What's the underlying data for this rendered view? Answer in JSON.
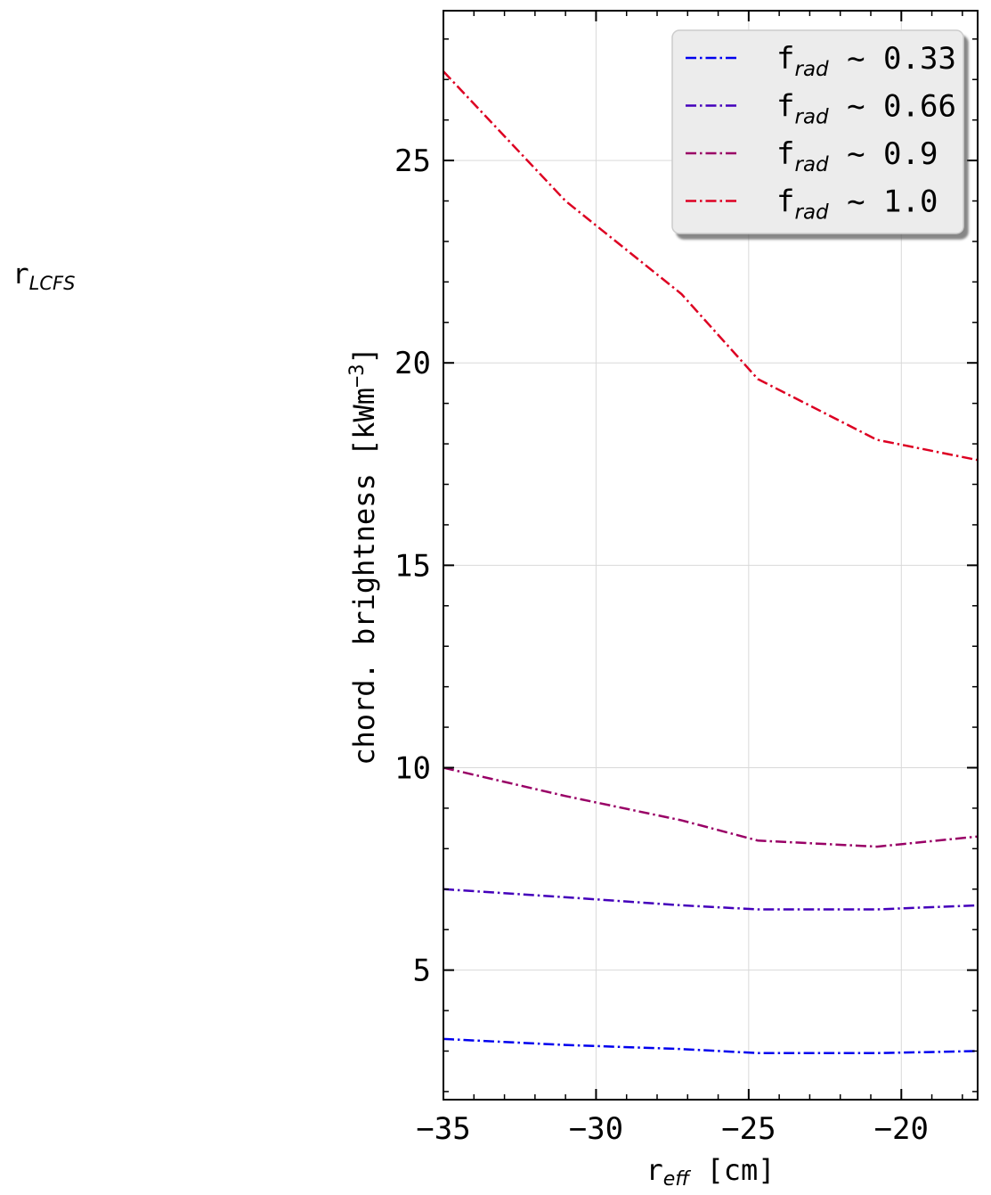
{
  "side_label": {
    "main": "r",
    "sub": "LCFS"
  },
  "chart_data": {
    "type": "line",
    "title": "",
    "xlabel": {
      "main": "r",
      "sub": "eff",
      "unit": " [cm]"
    },
    "ylabel": {
      "text": "chord. brightness [kWm",
      "sup": "−3",
      "end": "]"
    },
    "xlim": [
      -35,
      -17.5
    ],
    "ylim": [
      1.8,
      28.7
    ],
    "xticks": [
      -35,
      -30,
      -25,
      -20
    ],
    "xtick_labels": [
      "−35",
      "−30",
      "−25",
      "−20"
    ],
    "yticks": [
      5,
      10,
      15,
      20,
      25
    ],
    "ytick_labels": [
      "5",
      "10",
      "15",
      "20",
      "25"
    ],
    "grid": true,
    "legend_position": "top-right",
    "line_style": "dash-dot",
    "x": [
      -35,
      -31,
      -27.2,
      -24.7,
      -20.8,
      -17.5
    ],
    "series": [
      {
        "name": {
          "main": "f",
          "sub": "rad",
          "value": " ~ 0.33"
        },
        "color": "#0000ee",
        "values": [
          3.3,
          3.15,
          3.05,
          2.95,
          2.95,
          3.0
        ]
      },
      {
        "name": {
          "main": "f",
          "sub": "rad",
          "value": " ~ 0.66"
        },
        "color": "#4400bb",
        "values": [
          7.0,
          6.8,
          6.6,
          6.5,
          6.5,
          6.6
        ]
      },
      {
        "name": {
          "main": "f",
          "sub": "rad",
          "value": " ~ 0.9"
        },
        "color": "#990066",
        "values": [
          10.0,
          9.3,
          8.7,
          8.2,
          8.05,
          8.3
        ]
      },
      {
        "name": {
          "main": "f",
          "sub": "rad",
          "value": " ~ 1.0"
        },
        "color": "#dd0022",
        "values": [
          27.2,
          24.0,
          21.7,
          19.6,
          18.1,
          17.6
        ]
      }
    ]
  }
}
